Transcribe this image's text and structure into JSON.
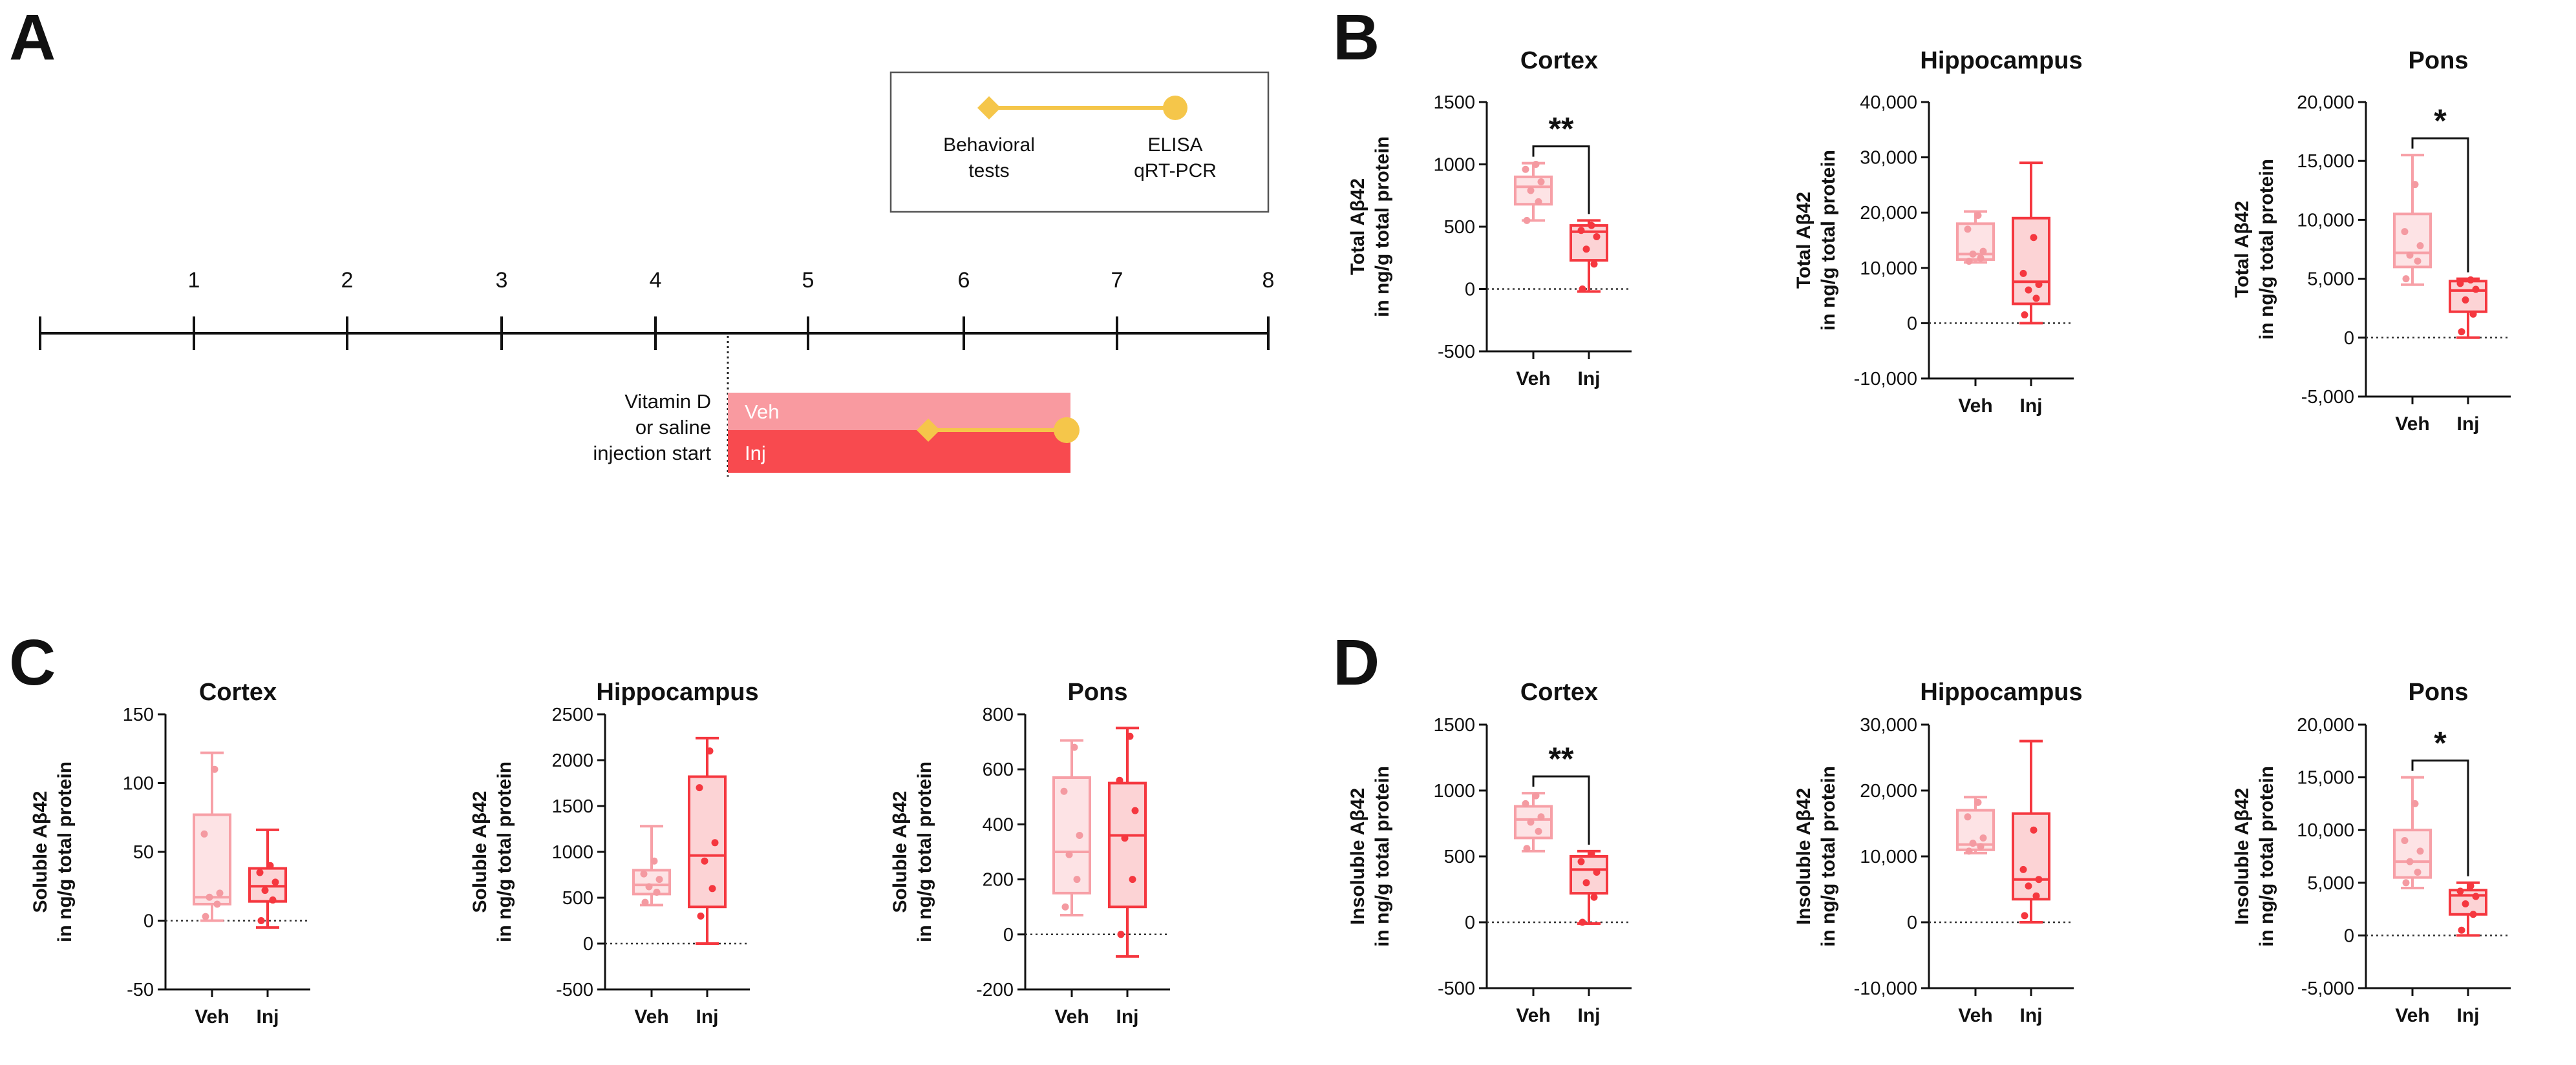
{
  "panels": {
    "A": "A",
    "B": "B",
    "C": "C",
    "D": "D"
  },
  "timeline": {
    "ticks": [
      "1",
      "2",
      "3",
      "4",
      "5",
      "6",
      "7",
      "8"
    ],
    "start_label": [
      "Vitamin D",
      "or saline",
      "injection start"
    ],
    "veh_label": "Veh",
    "inj_label": "Inj",
    "legend": {
      "left": [
        "Behavioral",
        "tests"
      ],
      "right": [
        "ELISA",
        "qRT-PCR"
      ]
    }
  },
  "colors": {
    "veh": "#f7a0a7",
    "inj": "#f5373f",
    "veh_bar": "#f99aa0",
    "inj_bar": "#f84a4f",
    "marker": "#f5c64a"
  },
  "chart_data": [
    {
      "id": "B-cortex",
      "panel": "B",
      "type": "box",
      "title": "Cortex",
      "ylabel": [
        "Total Aβ42",
        "in ng/g total protein"
      ],
      "categories": [
        "Veh",
        "Inj"
      ],
      "ylim": [
        -500,
        1500
      ],
      "yticks": [
        -500,
        0,
        500,
        1000,
        1500
      ],
      "yticklabels": [
        "-500",
        "0",
        "500",
        "1000",
        "1500"
      ],
      "significance": "**",
      "series": [
        {
          "name": "Veh",
          "min": 550,
          "q1": 680,
          "median": 820,
          "q3": 900,
          "max": 1010,
          "points": [
            550,
            700,
            790,
            860,
            960,
            1000
          ]
        },
        {
          "name": "Inj",
          "min": -20,
          "q1": 230,
          "median": 460,
          "q3": 510,
          "max": 550,
          "points": [
            0,
            200,
            320,
            420,
            470,
            510
          ]
        }
      ]
    },
    {
      "id": "B-hippocampus",
      "panel": "B",
      "type": "box",
      "title": "Hippocampus",
      "ylabel": [
        "Total Aβ42",
        "in ng/g total protein"
      ],
      "categories": [
        "Veh",
        "Inj"
      ],
      "ylim": [
        -10000,
        40000
      ],
      "yticks": [
        -10000,
        0,
        10000,
        20000,
        30000,
        40000
      ],
      "yticklabels": [
        "-10,000",
        "0",
        "10,000",
        "20,000",
        "30,000",
        "40,000"
      ],
      "significance": "",
      "series": [
        {
          "name": "Veh",
          "min": 11000,
          "q1": 11500,
          "median": 12500,
          "q3": 18000,
          "max": 20200,
          "points": [
            11200,
            11800,
            12500,
            13000,
            17000,
            19500
          ]
        },
        {
          "name": "Inj",
          "min": 0,
          "q1": 3500,
          "median": 7500,
          "q3": 19000,
          "max": 29000,
          "points": [
            1500,
            4500,
            6000,
            7000,
            9000,
            15500
          ]
        }
      ]
    },
    {
      "id": "B-pons",
      "panel": "B",
      "type": "box",
      "title": "Pons",
      "ylabel": [
        "Total Aβ42",
        "in ng/g total protein"
      ],
      "categories": [
        "Veh",
        "Inj"
      ],
      "ylim": [
        -5000,
        20000
      ],
      "yticks": [
        -5000,
        0,
        5000,
        10000,
        15000,
        20000
      ],
      "yticklabels": [
        "-5,000",
        "0",
        "5,000",
        "10,000",
        "15,000",
        "20,000"
      ],
      "significance": "*",
      "series": [
        {
          "name": "Veh",
          "min": 4500,
          "q1": 6000,
          "median": 7200,
          "q3": 10500,
          "max": 15500,
          "points": [
            5000,
            6500,
            7000,
            7800,
            9000,
            13000
          ]
        },
        {
          "name": "Inj",
          "min": 0,
          "q1": 2200,
          "median": 4000,
          "q3": 4800,
          "max": 5000,
          "points": [
            500,
            2000,
            3200,
            4100,
            4600,
            4900
          ]
        }
      ]
    },
    {
      "id": "C-cortex",
      "panel": "C",
      "type": "box",
      "title": "Cortex",
      "ylabel": [
        "Soluble Aβ42",
        "in ng/g total protein"
      ],
      "categories": [
        "Veh",
        "Inj"
      ],
      "ylim": [
        -50,
        150
      ],
      "yticks": [
        -50,
        0,
        50,
        100,
        150
      ],
      "yticklabels": [
        "-50",
        "0",
        "50",
        "100",
        "150"
      ],
      "significance": "",
      "series": [
        {
          "name": "Veh",
          "min": 0,
          "q1": 12,
          "median": 17,
          "q3": 77,
          "max": 122,
          "points": [
            3,
            12,
            17,
            20,
            63,
            110
          ]
        },
        {
          "name": "Inj",
          "min": -5,
          "q1": 14,
          "median": 25,
          "q3": 38,
          "max": 66,
          "points": [
            0,
            15,
            22,
            28,
            35,
            40
          ]
        }
      ]
    },
    {
      "id": "C-hippocampus",
      "panel": "C",
      "type": "box",
      "title": "Hippocampus",
      "ylabel": [
        "Soluble Aβ42",
        "in ng/g total protein"
      ],
      "categories": [
        "Veh",
        "Inj"
      ],
      "ylim": [
        -500,
        2500
      ],
      "yticks": [
        -500,
        0,
        500,
        1000,
        1500,
        2000,
        2500
      ],
      "yticklabels": [
        "-500",
        "0",
        "500",
        "1000",
        "1500",
        "2000",
        "2500"
      ],
      "significance": "",
      "series": [
        {
          "name": "Veh",
          "min": 420,
          "q1": 540,
          "median": 640,
          "q3": 800,
          "max": 1280,
          "points": [
            450,
            560,
            620,
            700,
            760,
            900
          ]
        },
        {
          "name": "Inj",
          "min": 0,
          "q1": 400,
          "median": 960,
          "q3": 1820,
          "max": 2240,
          "points": [
            300,
            600,
            900,
            1100,
            1700,
            2100
          ]
        }
      ]
    },
    {
      "id": "C-pons",
      "panel": "C",
      "type": "box",
      "title": "Pons",
      "ylabel": [
        "Soluble Aβ42",
        "in ng/g total protein"
      ],
      "categories": [
        "Veh",
        "Inj"
      ],
      "ylim": [
        -200,
        800
      ],
      "yticks": [
        -200,
        0,
        200,
        400,
        600,
        800
      ],
      "yticklabels": [
        "-200",
        "0",
        "200",
        "400",
        "600",
        "800"
      ],
      "significance": "",
      "series": [
        {
          "name": "Veh",
          "min": 70,
          "q1": 150,
          "median": 300,
          "q3": 570,
          "max": 705,
          "points": [
            100,
            200,
            290,
            360,
            520,
            680
          ]
        },
        {
          "name": "Inj",
          "min": -80,
          "q1": 100,
          "median": 360,
          "q3": 550,
          "max": 750,
          "points": [
            0,
            200,
            350,
            450,
            560,
            720
          ]
        }
      ]
    },
    {
      "id": "D-cortex",
      "panel": "D",
      "type": "box",
      "title": "Cortex",
      "ylabel": [
        "Insoluble Aβ42",
        "in ng/g total protein"
      ],
      "categories": [
        "Veh",
        "Inj"
      ],
      "ylim": [
        -500,
        1500
      ],
      "yticks": [
        -500,
        0,
        500,
        1000,
        1500
      ],
      "yticklabels": [
        "-500",
        "0",
        "500",
        "1000",
        "1500"
      ],
      "significance": "**",
      "series": [
        {
          "name": "Veh",
          "min": 540,
          "q1": 640,
          "median": 780,
          "q3": 880,
          "max": 980,
          "points": [
            560,
            690,
            760,
            800,
            900,
            960
          ]
        },
        {
          "name": "Inj",
          "min": -10,
          "q1": 220,
          "median": 400,
          "q3": 500,
          "max": 540,
          "points": [
            0,
            190,
            300,
            380,
            460,
            520
          ]
        }
      ]
    },
    {
      "id": "D-hippocampus",
      "panel": "D",
      "type": "box",
      "title": "Hippocampus",
      "ylabel": [
        "Insoluble Aβ42",
        "in ng/g total protein"
      ],
      "categories": [
        "Veh",
        "Inj"
      ],
      "ylim": [
        -10000,
        30000
      ],
      "yticks": [
        -10000,
        0,
        10000,
        20000,
        30000
      ],
      "yticklabels": [
        "-10,000",
        "0",
        "10,000",
        "20,000",
        "30,000"
      ],
      "significance": "",
      "series": [
        {
          "name": "Veh",
          "min": 10500,
          "q1": 11000,
          "median": 11800,
          "q3": 17000,
          "max": 19000,
          "points": [
            10800,
            11500,
            12000,
            12800,
            16000,
            18200
          ]
        },
        {
          "name": "Inj",
          "min": 0,
          "q1": 3500,
          "median": 6500,
          "q3": 16500,
          "max": 27500,
          "points": [
            1000,
            4000,
            5500,
            6500,
            8000,
            14000
          ]
        }
      ]
    },
    {
      "id": "D-pons",
      "panel": "D",
      "type": "box",
      "title": "Pons",
      "ylabel": [
        "Insoluble Aβ42",
        "in ng/g total protein"
      ],
      "categories": [
        "Veh",
        "Inj"
      ],
      "ylim": [
        -5000,
        20000
      ],
      "yticks": [
        -5000,
        0,
        5000,
        10000,
        15000,
        20000
      ],
      "yticklabels": [
        "-5,000",
        "0",
        "5,000",
        "10,000",
        "15,000",
        "20,000"
      ],
      "significance": "*",
      "series": [
        {
          "name": "Veh",
          "min": 4500,
          "q1": 5500,
          "median": 7000,
          "q3": 10000,
          "max": 15000,
          "points": [
            5000,
            6000,
            7000,
            8000,
            9000,
            12500
          ]
        },
        {
          "name": "Inj",
          "min": 0,
          "q1": 2000,
          "median": 3800,
          "q3": 4300,
          "max": 5000,
          "points": [
            500,
            2000,
            3000,
            3700,
            4200,
            4700
          ]
        }
      ]
    }
  ]
}
